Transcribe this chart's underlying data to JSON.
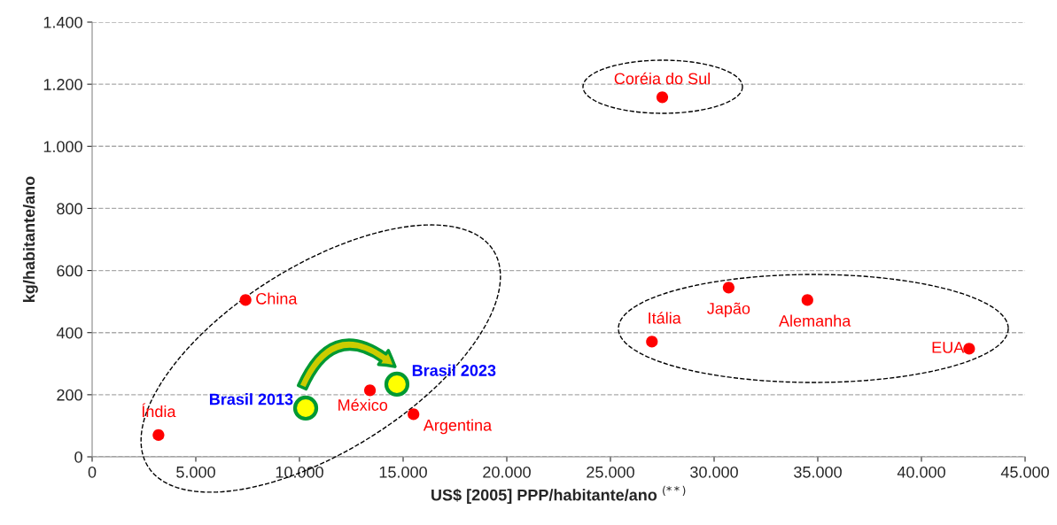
{
  "chart_data": {
    "type": "scatter",
    "xlabel": "US$ [2005] PPP/habitante/ano $^{(**)}$",
    "ylabel": "kg/habitante/ano",
    "xlim": [
      0,
      45000
    ],
    "ylim": [
      0,
      1400
    ],
    "xticks": [
      {
        "value": 0,
        "label": "0"
      },
      {
        "value": 5000,
        "label": "5.000"
      },
      {
        "value": 10000,
        "label": "10.000"
      },
      {
        "value": 15000,
        "label": "15.000"
      },
      {
        "value": 20000,
        "label": "20.000"
      },
      {
        "value": 25000,
        "label": "25.000"
      },
      {
        "value": 30000,
        "label": "30.000"
      },
      {
        "value": 35000,
        "label": "35.000"
      },
      {
        "value": 40000,
        "label": "40.000"
      },
      {
        "value": 45000,
        "label": "45.000"
      }
    ],
    "yticks": [
      {
        "value": 0,
        "label": "0"
      },
      {
        "value": 200,
        "label": "200"
      },
      {
        "value": 400,
        "label": "400"
      },
      {
        "value": 600,
        "label": "600"
      },
      {
        "value": 800,
        "label": "800"
      },
      {
        "value": 1000,
        "label": "1.000"
      },
      {
        "value": 1200,
        "label": "1.200"
      },
      {
        "value": 1400,
        "label": "1.400"
      }
    ],
    "grid": "y",
    "legend": false,
    "marker": "circle",
    "series": [
      {
        "name": "Índia",
        "color": "#ff0000",
        "x": [
          3200
        ],
        "values": [
          70
        ]
      },
      {
        "name": "China",
        "color": "#ff0000",
        "x": [
          7400
        ],
        "values": [
          505
        ]
      },
      {
        "name": "Brasil 2013",
        "color": "#ffff00",
        "x": [
          10300
        ],
        "values": [
          157
        ]
      },
      {
        "name": "Brasil 2023",
        "color": "#ffff00",
        "x": [
          14700
        ],
        "values": [
          234
        ]
      },
      {
        "name": "México",
        "color": "#ff0000",
        "x": [
          13400
        ],
        "values": [
          214
        ]
      },
      {
        "name": "Argentina",
        "color": "#ff0000",
        "x": [
          15500
        ],
        "values": [
          137
        ]
      },
      {
        "name": "Coréia do Sul",
        "color": "#ff0000",
        "x": [
          27500
        ],
        "values": [
          1158
        ]
      },
      {
        "name": "Itália",
        "color": "#ff0000",
        "x": [
          27000
        ],
        "values": [
          371
        ]
      },
      {
        "name": "Japão",
        "color": "#ff0000",
        "x": [
          30700
        ],
        "values": [
          545
        ]
      },
      {
        "name": "Alemanha",
        "color": "#ff0000",
        "x": [
          34500
        ],
        "values": [
          505
        ]
      },
      {
        "name": "EUA",
        "color": "#ff0000",
        "x": [
          42300
        ],
        "values": [
          348
        ]
      }
    ]
  }
}
